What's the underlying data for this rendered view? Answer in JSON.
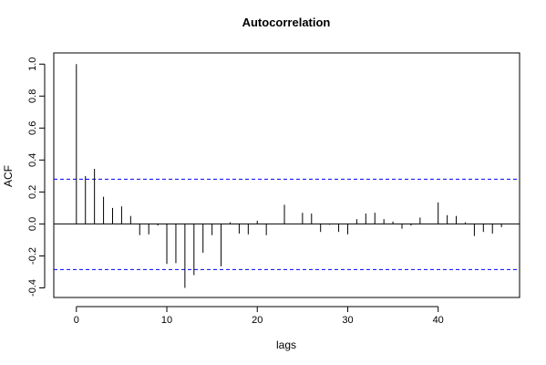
{
  "chart_data": {
    "type": "bar",
    "title": "Autocorrelation",
    "xlabel": "lags",
    "ylabel": "ACF",
    "xlim": [
      -2.5,
      49
    ],
    "ylim": [
      -0.46,
      1.07
    ],
    "x_ticks": [
      0,
      10,
      20,
      30,
      40
    ],
    "y_ticks": [
      -0.4,
      -0.2,
      0.0,
      0.2,
      0.4,
      0.6,
      0.8,
      1.0
    ],
    "x_tick_labels": [
      "0",
      "10",
      "20",
      "30",
      "40"
    ],
    "y_tick_labels": [
      "-0.4",
      "-0.2",
      "0.0",
      "0.2",
      "0.4",
      "0.6",
      "0.8",
      "1.0"
    ],
    "confidence_bounds": [
      0.28,
      -0.285
    ],
    "confidence_color": "#0000ff",
    "bar_color": "#000000",
    "x": [
      0,
      1,
      2,
      3,
      4,
      5,
      6,
      7,
      8,
      9,
      10,
      11,
      12,
      13,
      14,
      15,
      16,
      17,
      18,
      19,
      20,
      21,
      22,
      23,
      24,
      25,
      26,
      27,
      28,
      29,
      30,
      31,
      32,
      33,
      34,
      35,
      36,
      37,
      38,
      39,
      40,
      41,
      42,
      43,
      44,
      45,
      46,
      47
    ],
    "values": [
      1.0,
      0.3,
      0.345,
      0.17,
      0.1,
      0.11,
      0.05,
      -0.07,
      -0.065,
      -0.01,
      -0.25,
      -0.245,
      -0.4,
      -0.32,
      -0.18,
      -0.07,
      -0.265,
      0.01,
      -0.06,
      -0.065,
      0.02,
      -0.07,
      0.0,
      0.12,
      0.0,
      0.07,
      0.065,
      -0.05,
      -0.005,
      -0.05,
      -0.065,
      0.03,
      0.065,
      0.07,
      0.03,
      0.015,
      -0.03,
      -0.01,
      0.04,
      0.0,
      0.135,
      0.055,
      0.05,
      0.01,
      -0.075,
      -0.05,
      -0.06,
      -0.02
    ],
    "grid": false
  }
}
